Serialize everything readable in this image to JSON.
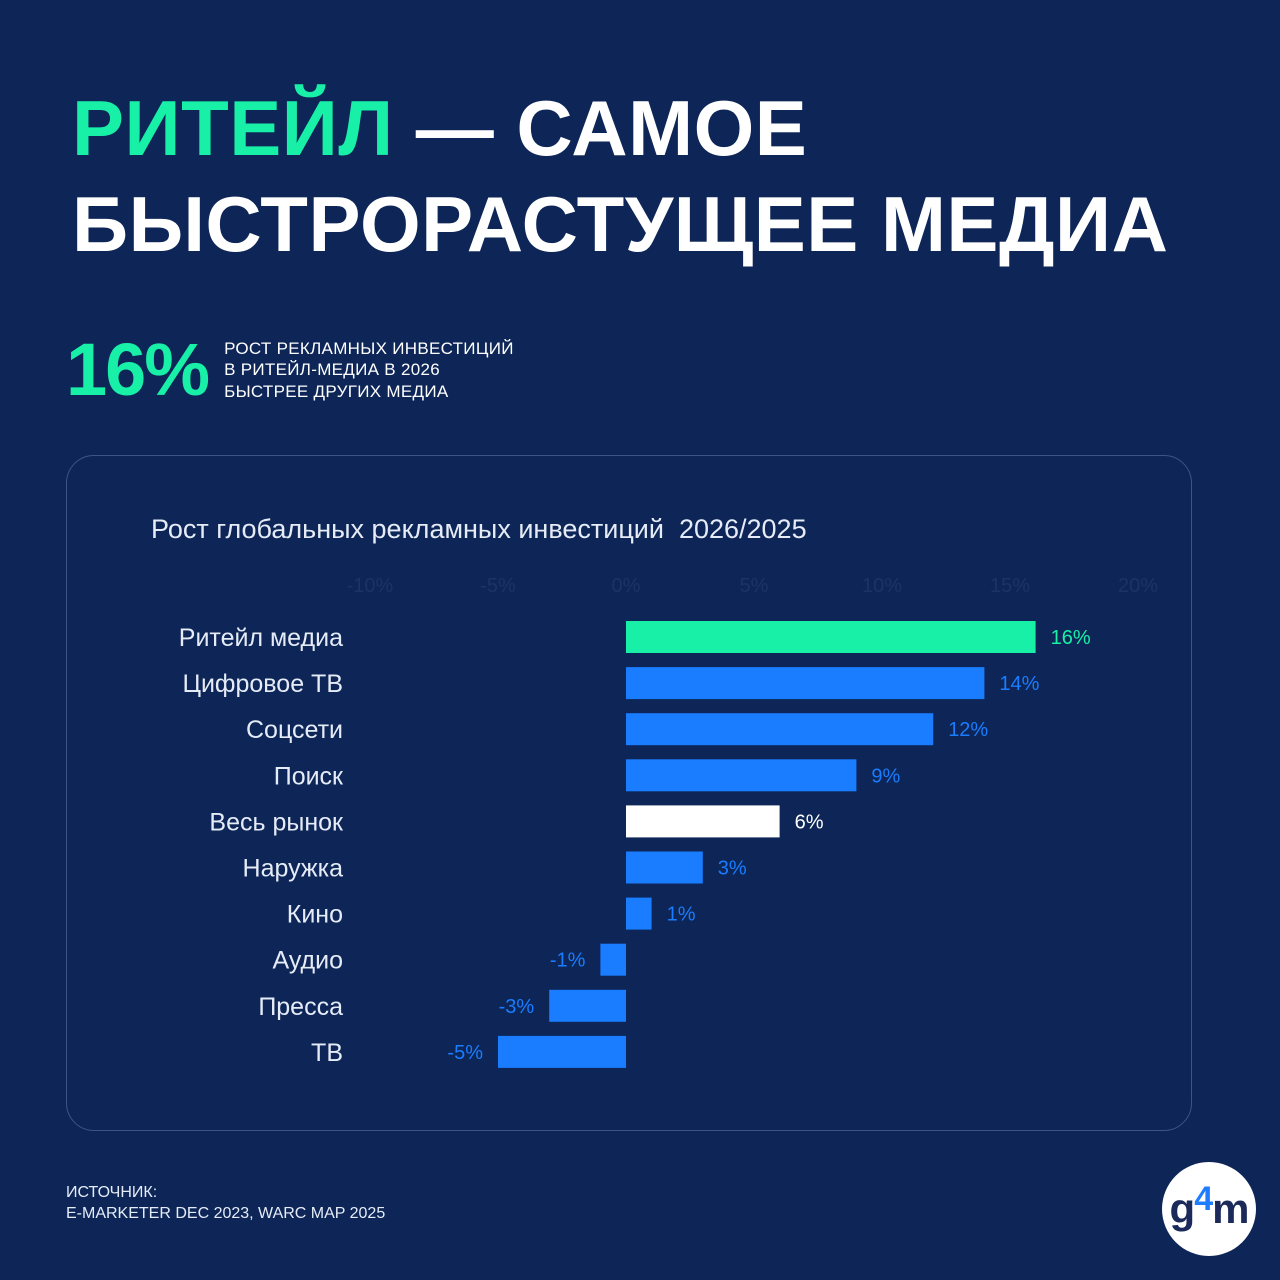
{
  "header": {
    "title_accent": "РИТЕЙЛ",
    "title_rest_line1": " — САМОЕ",
    "title_line2": "БЫСТРОРАСТУЩЕЕ МЕДИА"
  },
  "stat": {
    "value": "16%",
    "lines": [
      "РОСТ РЕКЛАМНЫХ ИНВЕСТИЦИЙ",
      "В РИТЕЙЛ-МЕДИА В 2026",
      "БЫСТРЕЕ ДРУГИХ  МЕДИА"
    ]
  },
  "chart_data": {
    "type": "bar",
    "orientation": "horizontal",
    "title": "Рост глобальных рекламных инвестиций  2026/2025",
    "categories": [
      "Ритейл медиа",
      "Цифровое ТВ",
      "Соцсети",
      "Поиск",
      "Весь рынок",
      "Наружка",
      "Кино",
      "Аудио",
      "Пресса",
      "ТВ"
    ],
    "values": [
      16,
      14,
      12,
      9,
      6,
      3,
      1,
      -1,
      -3,
      -5
    ],
    "value_labels": [
      "16%",
      "14%",
      "12%",
      "9%",
      "6%",
      "3%",
      "1%",
      "-1%",
      "-3%",
      "-5%"
    ],
    "xlim": [
      -10,
      20
    ],
    "ticks": [
      "-10%",
      "-5%",
      "0%",
      "5%",
      "10%",
      "15%",
      "20%"
    ],
    "bar_colors": [
      "#18f0a8",
      "#1a7cff",
      "#1a7cff",
      "#1a7cff",
      "#ffffff",
      "#1a7cff",
      "#1a7cff",
      "#1a7cff",
      "#1a7cff",
      "#1a7cff"
    ],
    "label_colors": [
      "#18f0a8",
      "#1a7cff",
      "#1a7cff",
      "#1a7cff",
      "#ffffff",
      "#1a7cff",
      "#1a7cff",
      "#1a7cff",
      "#1a7cff",
      "#1a7cff"
    ]
  },
  "footer": {
    "source_label": "ИСТОЧНИК:",
    "source_text": "E-MARKETER DEC 2023, WARC MAP 2025"
  },
  "logo": {
    "g": "g",
    "four": "4",
    "m": "m"
  },
  "colors": {
    "background": "#0d2657",
    "accent": "#18f0a8",
    "bar_blue": "#1a7cff",
    "tick_faint": "#1a3468"
  }
}
